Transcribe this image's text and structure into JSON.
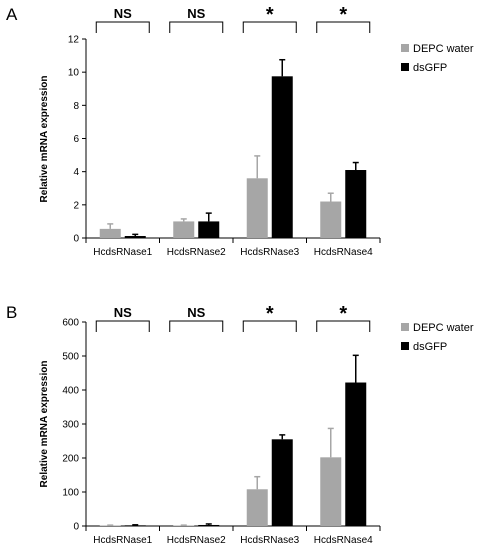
{
  "colors": {
    "series": [
      "#a6a6a6",
      "#000000"
    ],
    "axis": "#000000"
  },
  "chart_data": [
    {
      "type": "bar",
      "panel_label": "A",
      "categories": [
        "HcdsRNase1",
        "HcdsRNase2",
        "HcdsRNase3",
        "HcdsRNase4"
      ],
      "series": [
        {
          "name": "DEPC water",
          "values": [
            0.55,
            1.0,
            3.6,
            2.2
          ],
          "errors": [
            0.3,
            0.15,
            1.35,
            0.5
          ]
        },
        {
          "name": "dsGFP",
          "values": [
            0.12,
            1.0,
            9.75,
            4.1
          ],
          "errors": [
            0.1,
            0.5,
            1.0,
            0.45
          ]
        }
      ],
      "ylabel": "Relative mRNA expression",
      "ylim": [
        0,
        12
      ],
      "yticks": [
        0,
        2,
        4,
        6,
        8,
        10,
        12
      ],
      "significance": [
        "NS",
        "NS",
        "*",
        "*"
      ],
      "legend": "top-right",
      "grid": false
    },
    {
      "type": "bar",
      "panel_label": "B",
      "categories": [
        "HcdsRNase1",
        "HcdsRNase2",
        "HcdsRNase3",
        "HcdsRNase4"
      ],
      "series": [
        {
          "name": "DEPC water",
          "values": [
            1.5,
            1.5,
            108,
            202
          ],
          "errors": [
            1,
            1,
            37,
            85
          ]
        },
        {
          "name": "dsGFP",
          "values": [
            2,
            3,
            255,
            422
          ],
          "errors": [
            1.5,
            3,
            13,
            80
          ]
        }
      ],
      "ylabel": "Relative mRNA expression",
      "ylim": [
        0,
        600
      ],
      "yticks": [
        0,
        100,
        200,
        300,
        400,
        500,
        600
      ],
      "significance": [
        "NS",
        "NS",
        "*",
        "*"
      ],
      "legend": "top-right",
      "grid": false
    }
  ]
}
